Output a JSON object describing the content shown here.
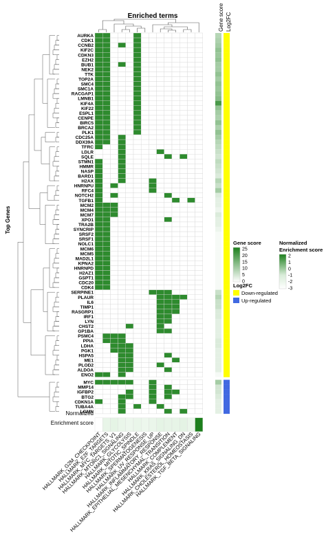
{
  "chart_data": {
    "type": "heatmap",
    "title": "Enriched terms",
    "ylabel": "Top Genes",
    "columns": [
      "HALLMARK_G2M_CHECKPOINT",
      "HALLMARK_E2F_TARGETS",
      "HALLMARK_MYC_TARGETS_V1",
      "HALLMARK_MTORC1_SIGNALING",
      "HALLMARK_GLYCOLYSIS",
      "HALLMARK_MITOTIC_SPINDLE",
      "HALLMARK_SPERMATOGENESIS",
      "HALLMARK_UV_RESPONSE_UP",
      "HALLMARK_INFLAMMATORY_RESPONSE",
      "HALLMARK_EPITHELIAL_MESENCHYMAL_TRANSITION",
      "HALLMARK_COMPLEMENT",
      "HALLMARK_KRAS_SIGNALING_DN",
      "HALLMARK_CHOLESTEROL_HOMEOSTASIS",
      "HALLMARK_TGF_BETA_SIGNALING"
    ],
    "genes": [
      "AURKA",
      "CDK1",
      "CCNB2",
      "KIF2C",
      "CDKN3",
      "EZH2",
      "BUB1",
      "NEK2",
      "TTK",
      "TOP2A",
      "SMC4",
      "SMC1A",
      "RACGAP1",
      "LMNB1",
      "KIF4A",
      "KIF22",
      "ESPL1",
      "CENPE",
      "BIRC5",
      "BRCA2",
      "PLK1",
      "CDC25A",
      "DDX39A",
      "TFRC",
      "LDLR",
      "SQLE",
      "STMN1",
      "HMMR",
      "NASP",
      "BARD1",
      "H2AX",
      "HNRNPU",
      "RFC4",
      "NOTCH2",
      "TGFB1",
      "MCM2",
      "MCM4",
      "MCM7",
      "XPO1",
      "TRA2B",
      "SYNCRIP",
      "SRSF2",
      "SRSF1",
      "NOLC1",
      "MCM6",
      "MCM5",
      "MAD2L1",
      "KPNA2",
      "HNRNPD",
      "H2AZ1",
      "GSPT1",
      "CDC20",
      "CDK4",
      "SERPINE1",
      "PLAUR",
      "IL6",
      "TIMP1",
      "RASGRP1",
      "IRF1",
      "LYN",
      "CHST2",
      "GP1BA",
      "PSMC4",
      "PPIA",
      "LDHA",
      "PGK1",
      "HSPA5",
      "ME1",
      "PLOD2",
      "ALDOA",
      "ENO2",
      "MYC",
      "MMP14",
      "IGFBP2",
      "BTG2",
      "CDKN1A",
      "TUBA4A",
      "LGMN"
    ],
    "membership": [
      [
        0,
        1,
        5
      ],
      [
        0,
        1,
        5
      ],
      [
        0,
        1,
        3,
        5
      ],
      [
        0,
        1,
        5
      ],
      [
        0,
        1,
        5
      ],
      [
        0,
        1,
        5
      ],
      [
        0,
        1,
        3,
        5
      ],
      [
        0,
        1,
        5
      ],
      [
        0,
        1,
        5
      ],
      [
        0,
        1,
        5
      ],
      [
        0,
        1,
        5
      ],
      [
        0,
        1,
        5
      ],
      [
        0,
        1,
        5
      ],
      [
        0,
        1,
        5
      ],
      [
        0,
        1,
        5
      ],
      [
        0,
        1,
        5
      ],
      [
        0,
        1,
        5
      ],
      [
        0,
        1,
        5
      ],
      [
        0,
        1,
        5
      ],
      [
        0,
        1,
        5
      ],
      [
        0,
        1,
        5
      ],
      [
        0,
        1,
        3
      ],
      [
        0,
        1,
        3
      ],
      [
        0,
        3
      ],
      [
        3,
        8
      ],
      [
        3,
        9,
        11
      ],
      [
        0,
        3
      ],
      [
        0,
        3
      ],
      [
        0,
        3
      ],
      [
        0,
        3
      ],
      [
        0,
        3,
        7
      ],
      [
        0,
        2,
        7
      ],
      [
        0,
        7
      ],
      [
        0,
        2,
        9
      ],
      [
        0,
        10,
        12
      ],
      [
        0,
        1,
        2
      ],
      [
        0,
        1,
        2
      ],
      [
        0,
        1,
        2
      ],
      [
        0,
        1,
        9
      ],
      [
        0,
        1
      ],
      [
        0,
        1
      ],
      [
        0,
        1
      ],
      [
        0,
        1
      ],
      [
        0,
        1
      ],
      [
        0,
        1
      ],
      [
        0,
        1
      ],
      [
        0,
        1
      ],
      [
        0,
        1
      ],
      [
        0,
        1
      ],
      [
        0,
        1
      ],
      [
        0,
        1
      ],
      [
        0,
        1
      ],
      [
        0,
        1
      ],
      [
        7,
        8,
        9
      ],
      [
        8,
        9,
        10,
        11
      ],
      [
        8,
        9,
        10
      ],
      [
        8,
        9,
        10
      ],
      [
        8,
        9,
        10
      ],
      [
        8,
        9
      ],
      [
        8,
        9
      ],
      [
        4,
        8
      ],
      [
        8,
        9
      ],
      [
        1,
        2,
        3
      ],
      [
        1,
        2,
        3
      ],
      [
        2,
        3,
        4
      ],
      [
        2,
        3,
        4
      ],
      [
        3,
        4,
        9
      ],
      [
        3,
        4,
        10
      ],
      [
        3,
        4,
        8
      ],
      [
        3,
        4,
        9
      ],
      [
        0,
        1,
        3
      ],
      [
        0,
        1,
        2,
        3,
        4,
        7
      ],
      [
        7,
        9
      ],
      [
        4,
        7,
        9,
        10
      ],
      [
        3,
        4,
        7,
        9
      ],
      [
        0,
        3,
        7
      ],
      [
        3,
        5,
        8
      ],
      [
        3,
        9,
        11
      ]
    ],
    "gene_score": [
      8,
      9,
      10,
      12,
      11,
      12,
      10,
      10,
      12,
      10,
      12,
      11,
      12,
      13,
      20,
      12,
      10,
      9,
      12,
      9,
      12,
      10,
      8,
      7,
      6,
      5,
      7,
      6,
      5,
      4,
      8,
      6,
      10,
      4,
      3,
      3,
      2,
      4,
      3,
      3,
      2,
      1,
      1,
      1,
      1,
      1,
      1,
      1,
      1,
      1,
      1,
      1,
      1,
      6,
      8,
      6,
      6,
      4,
      4,
      3,
      3,
      3,
      3,
      4,
      4,
      3,
      3,
      3,
      3,
      3,
      1,
      10,
      5,
      5,
      4,
      3,
      3,
      3
    ],
    "log2fc_direction": [
      "down",
      "down",
      "down",
      "down",
      "down",
      "down",
      "down",
      "down",
      "down",
      "down",
      "down",
      "down",
      "down",
      "down",
      "down",
      "down",
      "down",
      "down",
      "down",
      "down",
      "down",
      "down",
      "down",
      "down",
      "down",
      "down",
      "down",
      "down",
      "down",
      "down",
      "down",
      "down",
      "down",
      "down",
      "down",
      "down",
      "down",
      "down",
      "down",
      "down",
      "down",
      "down",
      "down",
      "down",
      "down",
      "down",
      "down",
      "down",
      "down",
      "down",
      "down",
      "down",
      "down",
      "down",
      "down",
      "down",
      "down",
      "down",
      "down",
      "down",
      "down",
      "down",
      "down",
      "down",
      "down",
      "down",
      "down",
      "down",
      "down",
      "down",
      "down",
      "up",
      "up",
      "up",
      "up",
      "up",
      "up",
      "up"
    ],
    "enrichment_score": [
      -3,
      -1.5,
      -1.3,
      -1.6,
      -1.8,
      -1.6,
      -1.8,
      -1.6,
      -1.3,
      -1.4,
      -1.4,
      -1.2,
      -1.6,
      2
    ],
    "gene_score_legend": {
      "title": "Gene score",
      "ticks": [
        "25",
        "20",
        "15",
        "10",
        "5",
        "0"
      ],
      "range": [
        0,
        25
      ]
    },
    "enrichment_legend": {
      "title_line1": "Normalized",
      "title_line2": "Enrichment score",
      "ticks": [
        "2",
        "1",
        "0",
        "-1",
        "-2",
        "-3"
      ],
      "range": [
        -3,
        2
      ]
    },
    "log2fc_legend": {
      "title": "Log2FC",
      "down_label": "Down-regulated",
      "up_label": "Up-regulated"
    },
    "side_labels": {
      "gene_score": "Gene score",
      "log2fc": "Log2FC"
    },
    "bottom_row_label_line1": "Normalized",
    "bottom_row_label_line2": "Enrichment score",
    "colors": {
      "member": "#2e8b2e",
      "empty": "#ffffff",
      "grid": "#d6d6d6",
      "down": "#ffff00",
      "up": "#4169e1",
      "score_high": "#1c7f1c",
      "score_low": "#ffffff"
    }
  }
}
